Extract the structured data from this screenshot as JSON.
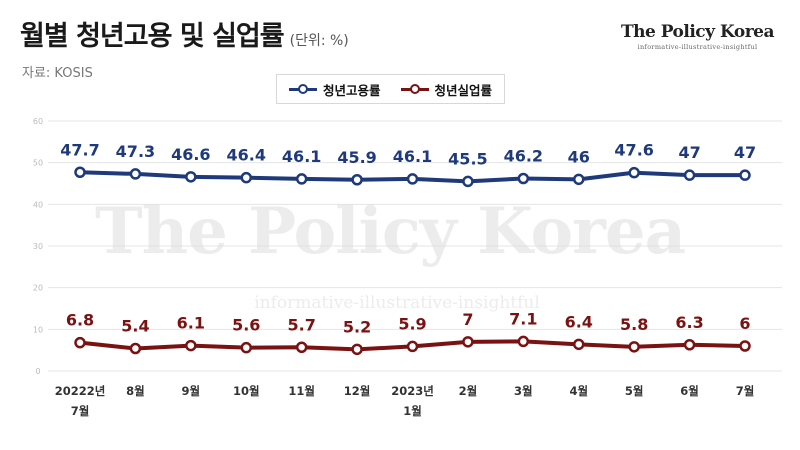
{
  "header": {
    "title": "월별 청년고용 및 실업률",
    "unit": "(단위: %)",
    "source": "자료: KOSIS"
  },
  "brand": {
    "name": "The Policy Korea",
    "tagline": "informative-illustrative-insightful"
  },
  "watermark": {
    "name": "The Policy Korea",
    "tagline": "informative-illustrative-insightful"
  },
  "colors": {
    "employment": "#1f3a7a",
    "unemployment": "#7a1212",
    "grid": "#e4e4e4",
    "axis_text": "#bbbbbb"
  },
  "chart_data": {
    "type": "line",
    "title": "월별 청년고용 및 실업률",
    "ylim": [
      0,
      60
    ],
    "yticks": [
      "0",
      "10",
      "20",
      "30",
      "40",
      "50",
      "60"
    ],
    "grid": true,
    "legend_position": "top-center",
    "categories": [
      [
        "20222년",
        "7월"
      ],
      [
        "8월"
      ],
      [
        "9월"
      ],
      [
        "10월"
      ],
      [
        "11월"
      ],
      [
        "12월"
      ],
      [
        "2023년",
        "1월"
      ],
      [
        "2월"
      ],
      [
        "3월"
      ],
      [
        "4월"
      ],
      [
        "5월"
      ],
      [
        "6월"
      ],
      [
        "7월"
      ]
    ],
    "series": [
      {
        "name": "청년고용률",
        "color": "#1f3a7a",
        "values": [
          47.7,
          47.3,
          46.6,
          46.4,
          46.1,
          45.9,
          46.1,
          45.5,
          46.2,
          46,
          47.6,
          47,
          47
        ],
        "labels": [
          "47.7",
          "47.3",
          "46.6",
          "46.4",
          "46.1",
          "45.9",
          "46.1",
          "45.5",
          "46.2",
          "46",
          "47.6",
          "47",
          "47"
        ]
      },
      {
        "name": "청년실업률",
        "color": "#7a1212",
        "values": [
          6.8,
          5.4,
          6.1,
          5.6,
          5.7,
          5.2,
          5.9,
          7,
          7.1,
          6.4,
          5.8,
          6.3,
          6
        ],
        "labels": [
          "6.8",
          "5.4",
          "6.1",
          "5.6",
          "5.7",
          "5.2",
          "5.9",
          "7",
          "7.1",
          "6.4",
          "5.8",
          "6.3",
          "6"
        ]
      }
    ]
  }
}
